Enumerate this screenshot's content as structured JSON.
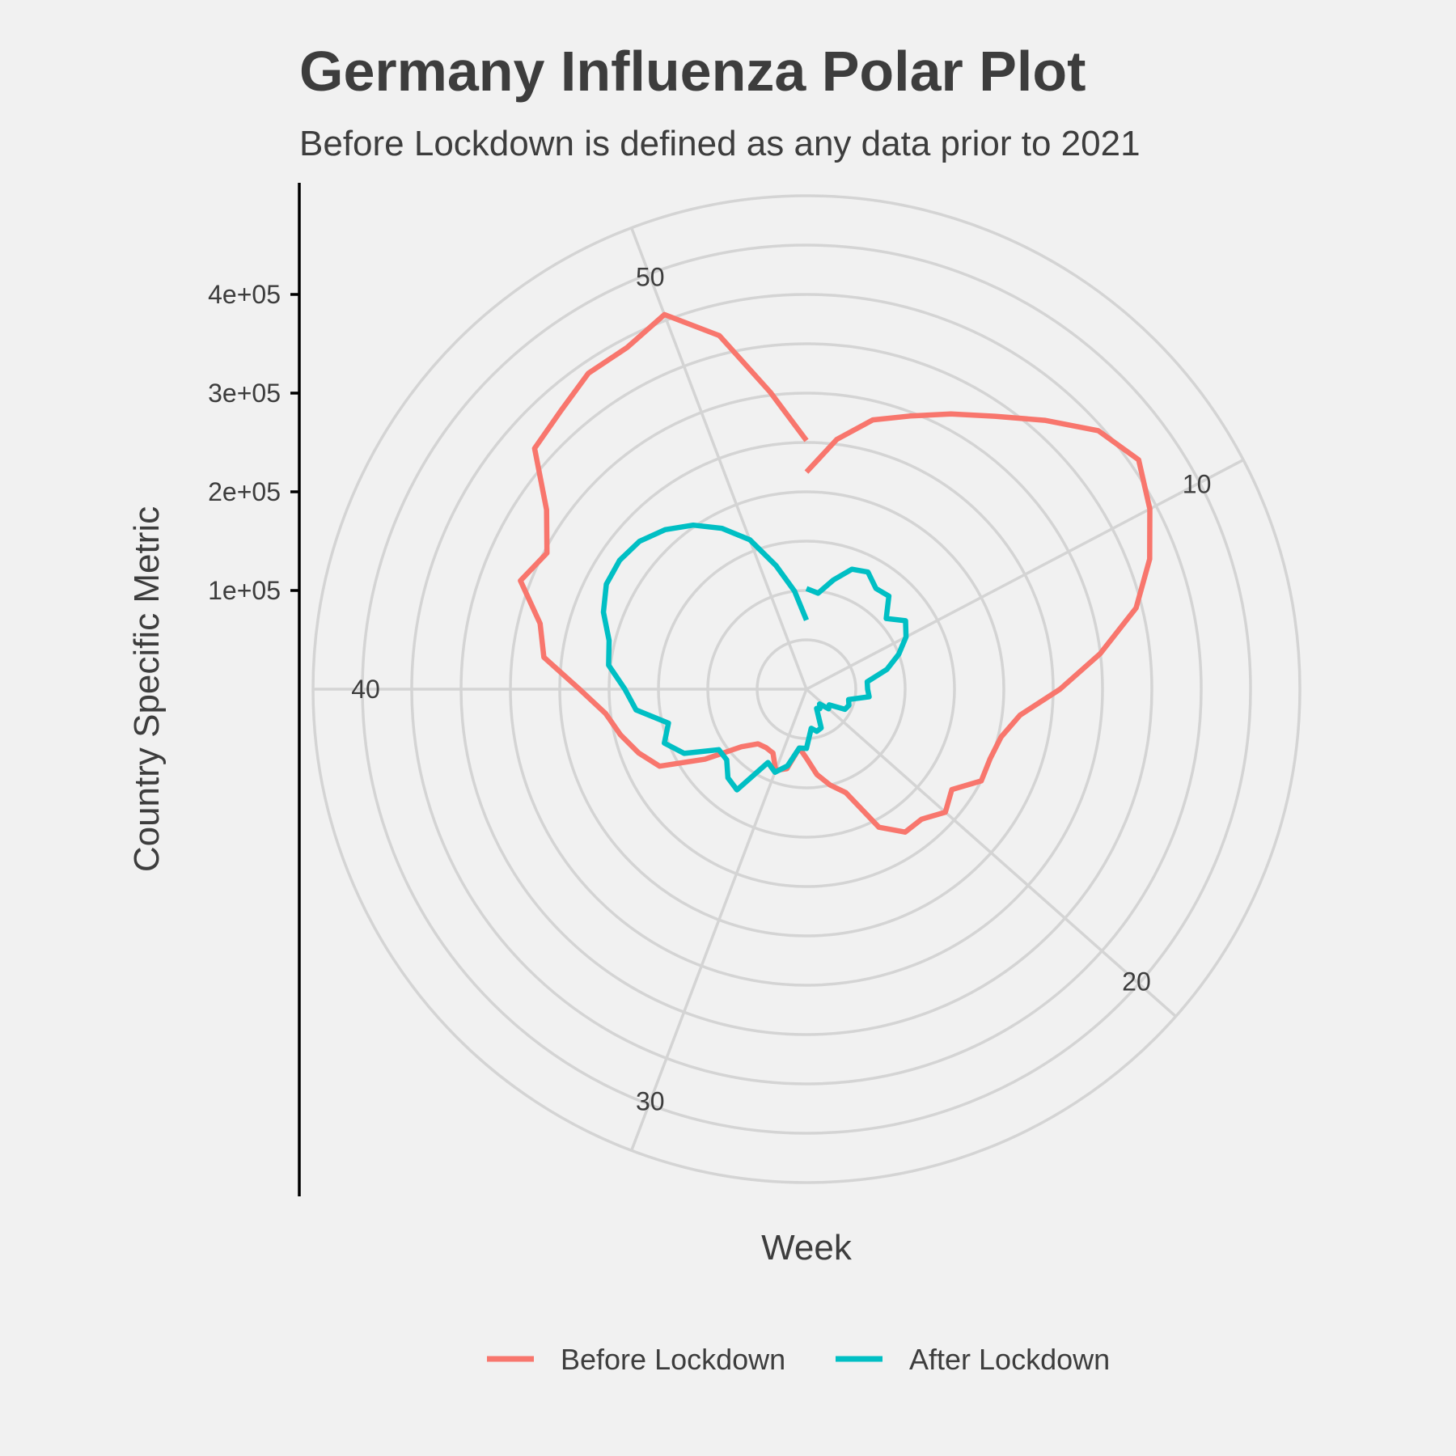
{
  "chart_data": {
    "type": "line",
    "coord": "polar",
    "title": "Germany Influenza Polar Plot",
    "subtitle": "Before Lockdown is defined as any data prior to 2021",
    "xlabel": "Week",
    "ylabel": "Country Specific Metric",
    "x_ticks": [
      10,
      20,
      30,
      40,
      50
    ],
    "y_ticks": [
      100000,
      200000,
      300000,
      400000
    ],
    "y_tick_labels": [
      "1e+05",
      "2e+05",
      "3e+05",
      "4e+05"
    ],
    "xlim": [
      1,
      53
    ],
    "ylim": [
      0,
      460000
    ],
    "grid": true,
    "legend_position": "bottom",
    "series": [
      {
        "name": "Before Lockdown",
        "color": "#F8766D",
        "x": [
          1,
          2,
          3,
          4,
          5,
          6,
          7,
          8,
          9,
          10,
          11,
          12,
          13,
          14,
          15,
          16,
          17,
          18,
          19,
          20,
          21,
          22,
          23,
          24,
          25,
          26,
          27,
          28,
          29,
          30,
          31,
          32,
          33,
          34,
          35,
          36,
          37,
          38,
          39,
          40,
          41,
          42,
          43,
          44,
          45,
          46,
          47,
          48,
          49,
          50,
          51,
          52,
          53
        ],
        "y": [
          220000,
          255000,
          281000,
          296000,
          315000,
          336000,
          364000,
          395000,
          409000,
          393000,
          372000,
          344000,
          300000,
          257000,
          218000,
          203000,
          199000,
          200000,
          179000,
          188000,
          176000,
          176000,
          158000,
          112000,
          100000,
          87000,
          70000,
          60000,
          83000,
          88000,
          73000,
          72000,
          74000,
          88000,
          125000,
          168000,
          182000,
          194000,
          205000,
          230000,
          268000,
          278000,
          310000,
          297000,
          320000,
          368000,
          376000,
          389000,
          391000,
          406000,
          369000,
          303000,
          252000
        ]
      },
      {
        "name": "After Lockdown",
        "color": "#00BFC4",
        "x": [
          1,
          2,
          3,
          4,
          5,
          6,
          7,
          8,
          9,
          10,
          11,
          12,
          13,
          14,
          15,
          16,
          17,
          18,
          19,
          20,
          21,
          22,
          23,
          24,
          25,
          26,
          27,
          28,
          29,
          30,
          31,
          32,
          33,
          34,
          35,
          36,
          37,
          38,
          39,
          40,
          41,
          42,
          43,
          44,
          45,
          46,
          47,
          48,
          49,
          50,
          51,
          52,
          53
        ],
        "y": [
          102000,
          98000,
          114000,
          130000,
          134000,
          124000,
          126000,
          108000,
          122000,
          114000,
          100000,
          84000,
          62000,
          62000,
          64000,
          44000,
          46000,
          44000,
          28000,
          30000,
          20000,
          24000,
          22000,
          42000,
          44000,
          40000,
          60000,
          60000,
          80000,
          90000,
          84000,
          124000,
          120000,
          108000,
          108000,
          140000,
          154000,
          144000,
          174000,
          184000,
          202000,
          206000,
          220000,
          229000,
          230000,
          226000,
          216000,
          202000,
          184000,
          162000,
          129000,
          100000,
          70000
        ]
      }
    ]
  }
}
